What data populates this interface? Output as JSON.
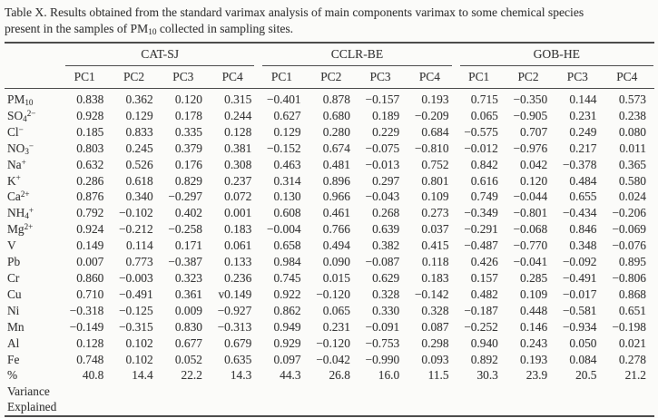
{
  "colors": {
    "paper": "#fbfbf9",
    "ink": "#3a3a3a",
    "rule": "#4c4c4c"
  },
  "title": {
    "parts": [
      [
        "Table X. Results obtained from the standard varimax analysis of main components varimax to some chemical species",
        ""
      ],
      [
        "",
        "br"
      ],
      [
        "present in the samples of PM",
        ""
      ],
      [
        "10",
        "sub"
      ],
      [
        " collected in sampling sites.",
        ""
      ]
    ]
  },
  "table": {
    "groups": [
      {
        "label": "CAT-SJ"
      },
      {
        "label": "CCLR-BE"
      },
      {
        "label": "GOB-HE"
      }
    ],
    "pc_headers": [
      "PC1",
      "PC2",
      "PC3",
      "PC4",
      "PC1",
      "PC2",
      "PC3",
      "PC4",
      "PC1",
      "PC2",
      "PC3",
      "PC4"
    ],
    "rows": [
      {
        "label_parts": [
          [
            "PM",
            ""
          ],
          [
            "10",
            "sub"
          ]
        ],
        "values": [
          "0.838",
          "0.362",
          "0.120",
          "0.315",
          "−0.401",
          "0.878",
          "−0.157",
          "0.193",
          "0.715",
          "−0.350",
          "0.144",
          "0.573"
        ]
      },
      {
        "label_parts": [
          [
            "SO",
            ""
          ],
          [
            "4",
            "sub"
          ],
          [
            "2−",
            "sup"
          ]
        ],
        "values": [
          "0.928",
          "0.129",
          "0.178",
          "0.244",
          "0.627",
          "0.680",
          "0.189",
          "−0.209",
          "0.065",
          "−0.905",
          "0.231",
          "0.238"
        ]
      },
      {
        "label_parts": [
          [
            "Cl",
            ""
          ],
          [
            "−",
            "sup"
          ]
        ],
        "values": [
          "0.185",
          "0.833",
          "0.335",
          "0.128",
          "0.129",
          "0.280",
          "0.229",
          "0.684",
          "−0.575",
          "0.707",
          "0.249",
          "0.080"
        ]
      },
      {
        "label_parts": [
          [
            "NO",
            ""
          ],
          [
            "3",
            "sub"
          ],
          [
            "−",
            "sup"
          ]
        ],
        "values": [
          "0.803",
          "0.245",
          "0.379",
          "0.381",
          "−0.152",
          "0.674",
          "−0.075",
          "−0.810",
          "−0.012",
          "−0.976",
          "0.217",
          "0.011"
        ]
      },
      {
        "label_parts": [
          [
            "Na",
            ""
          ],
          [
            "+",
            "sup"
          ]
        ],
        "values": [
          "0.632",
          "0.526",
          "0.176",
          "0.308",
          "0.463",
          "0.481",
          "−0.013",
          "0.752",
          "0.842",
          "0.042",
          "−0.378",
          "0.365"
        ]
      },
      {
        "label_parts": [
          [
            "K",
            ""
          ],
          [
            "+",
            "sup"
          ]
        ],
        "values": [
          "0.286",
          "0.618",
          "0.829",
          "0.237",
          "0.314",
          "0.896",
          "0.297",
          "0.801",
          "0.616",
          "0.120",
          "0.484",
          "0.580"
        ]
      },
      {
        "label_parts": [
          [
            "Ca",
            ""
          ],
          [
            "2+",
            "sup"
          ]
        ],
        "values": [
          "0.876",
          "0.340",
          "−0.297",
          "0.072",
          "0.130",
          "0.966",
          "−0.043",
          "0.109",
          "0.749",
          "−0.044",
          "0.655",
          "0.024"
        ]
      },
      {
        "label_parts": [
          [
            "NH",
            ""
          ],
          [
            "4",
            "sub"
          ],
          [
            "+",
            "sup"
          ]
        ],
        "values": [
          "0.792",
          "−0.102",
          "0.402",
          "0.001",
          "0.608",
          "0.461",
          "0.268",
          "0.273",
          "−0.349",
          "−0.801",
          "−0.434",
          "−0.206"
        ]
      },
      {
        "label_parts": [
          [
            "Mg",
            ""
          ],
          [
            "2+",
            "sup"
          ]
        ],
        "values": [
          "0.924",
          "−0.212",
          "−0.258",
          "0.183",
          "−0.004",
          "0.766",
          "0.639",
          "0.037",
          "−0.291",
          "−0.068",
          "0.846",
          "−0.069"
        ]
      },
      {
        "label_parts": [
          [
            "V",
            ""
          ]
        ],
        "values": [
          "0.149",
          "0.114",
          "0.171",
          "0.061",
          "0.658",
          "0.494",
          "0.382",
          "0.415",
          "−0.487",
          "−0.770",
          "0.348",
          "−0.076"
        ]
      },
      {
        "label_parts": [
          [
            "Pb",
            ""
          ]
        ],
        "values": [
          "0.007",
          "0.773",
          "−0.387",
          "0.133",
          "0.984",
          "0.090",
          "−0.087",
          "0.118",
          "0.426",
          "−0.041",
          "−0.092",
          "0.895"
        ]
      },
      {
        "label_parts": [
          [
            "Cr",
            ""
          ]
        ],
        "values": [
          "0.860",
          "−0.003",
          "0.323",
          "0.236",
          "0.745",
          "0.015",
          "0.629",
          "0.183",
          "0.157",
          "0.285",
          "−0.491",
          "−0.806"
        ]
      },
      {
        "label_parts": [
          [
            "Cu",
            ""
          ]
        ],
        "values": [
          "0.710",
          "−0.491",
          "0.361",
          "v0.149",
          "0.922",
          "−0.120",
          "0.328",
          "−0.142",
          "0.482",
          "0.109",
          "−0.017",
          "0.868"
        ]
      },
      {
        "label_parts": [
          [
            "Ni",
            ""
          ]
        ],
        "values": [
          "−0.318",
          "−0.125",
          "0.009",
          "−0.927",
          "0.862",
          "0.065",
          "0.330",
          "0.328",
          "−0.187",
          "0.448",
          "−0.581",
          "0.651"
        ]
      },
      {
        "label_parts": [
          [
            "Mn",
            ""
          ]
        ],
        "values": [
          "−0.149",
          "−0.315",
          "0.830",
          "−0.313",
          "0.949",
          "0.231",
          "−0.091",
          "0.087",
          "−0.252",
          "0.146",
          "−0.934",
          "−0.198"
        ]
      },
      {
        "label_parts": [
          [
            "Al",
            ""
          ]
        ],
        "values": [
          "0.128",
          "0.102",
          "0.677",
          "0.679",
          "0.929",
          "−0.120",
          "−0.753",
          "0.298",
          "0.940",
          "0.243",
          "0.050",
          "0.021"
        ]
      },
      {
        "label_parts": [
          [
            "Fe",
            ""
          ]
        ],
        "values": [
          "0.748",
          "0.102",
          "0.052",
          "0.635",
          "0.097",
          "−0.042",
          "−0.990",
          "0.093",
          "0.892",
          "0.193",
          "0.084",
          "0.278"
        ]
      }
    ],
    "variance_row": {
      "label_lines": [
        "%",
        "Variance",
        "Explained"
      ],
      "values": [
        "40.8",
        "14.4",
        "22.2",
        "14.3",
        "44.3",
        "26.8",
        "16.0",
        "11.5",
        "30.3",
        "23.9",
        "20.5",
        "21.2"
      ]
    }
  }
}
